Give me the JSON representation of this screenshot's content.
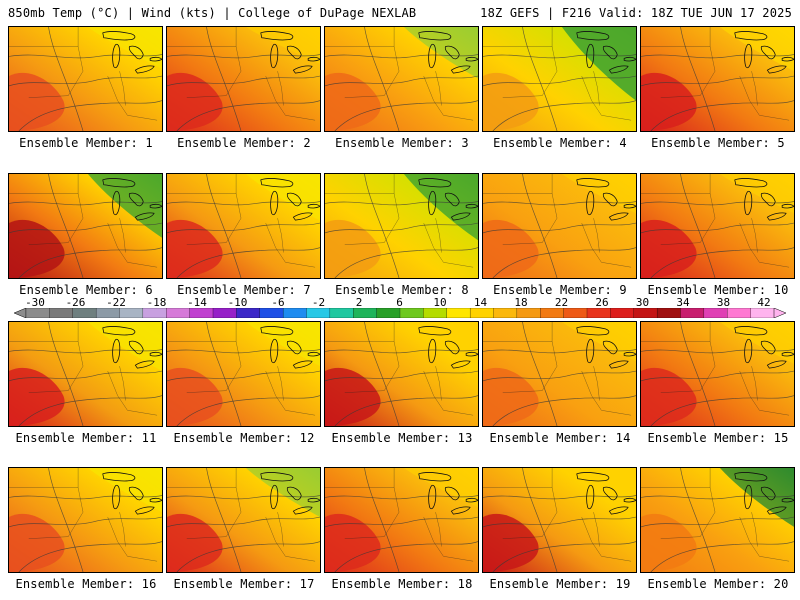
{
  "header": {
    "left": "850mb Temp (°C) | Wind (kts) | College of DuPage NEXLAB",
    "right": "18Z GEFS | F216 Valid: 18Z TUE JUN 17 2025"
  },
  "members": [
    {
      "label": "Ensemble Member: 1",
      "hot": "#e8501e",
      "base": "#f59a12",
      "cool": "#ffd200",
      "cold": "#f7e600",
      "coolness": 0.25
    },
    {
      "label": "Ensemble Member: 2",
      "hot": "#dd2a1c",
      "base": "#f27a12",
      "cool": "#fab80c",
      "cold": "#ffd200",
      "coolness": 0.15
    },
    {
      "label": "Ensemble Member: 3",
      "hot": "#ee6a18",
      "base": "#f9a010",
      "cool": "#ffd200",
      "cold": "#9acd32",
      "coolness": 0.45
    },
    {
      "label": "Ensemble Member: 4",
      "hot": "#f39c12",
      "base": "#ffd200",
      "cool": "#d6e000",
      "cold": "#4ca82c",
      "coolness": 0.9
    },
    {
      "label": "Ensemble Member: 5",
      "hot": "#d8201c",
      "base": "#f27a12",
      "cool": "#fab80c",
      "cold": "#ffd800",
      "coolness": 0.3
    },
    {
      "label": "Ensemble Member: 6",
      "hot": "#b41414",
      "base": "#f27a12",
      "cool": "#ffd200",
      "cold": "#4ca82c",
      "coolness": 0.7
    },
    {
      "label": "Ensemble Member: 7",
      "hot": "#dd2a1c",
      "base": "#f59a12",
      "cool": "#ffd200",
      "cold": "#f7e600",
      "coolness": 0.35
    },
    {
      "label": "Ensemble Member: 8",
      "hot": "#f39c12",
      "base": "#ffd200",
      "cool": "#d6e000",
      "cold": "#4ca82c",
      "coolness": 0.75
    },
    {
      "label": "Ensemble Member: 9",
      "hot": "#ee6a18",
      "base": "#f9a010",
      "cool": "#fbb80c",
      "cold": "#ffd200",
      "coolness": 0.2
    },
    {
      "label": "Ensemble Member: 10",
      "hot": "#d8201c",
      "base": "#f27a12",
      "cool": "#fab80c",
      "cold": "#ffd200",
      "coolness": 0.2
    },
    {
      "label": "Ensemble Member: 11",
      "hot": "#d8201c",
      "base": "#f39c12",
      "cool": "#ffd200",
      "cold": "#f7e600",
      "coolness": 0.4
    },
    {
      "label": "Ensemble Member: 12",
      "hot": "#e8501e",
      "base": "#f59a12",
      "cool": "#ffd200",
      "cold": "#f7e600",
      "coolness": 0.3
    },
    {
      "label": "Ensemble Member: 13",
      "hot": "#c81818",
      "base": "#f59a12",
      "cool": "#ffd200",
      "cold": "#ffd200",
      "coolness": 0.3
    },
    {
      "label": "Ensemble Member: 14",
      "hot": "#ee6a18",
      "base": "#f9a010",
      "cool": "#fab80c",
      "cold": "#ffd200",
      "coolness": 0.2
    },
    {
      "label": "Ensemble Member: 15",
      "hot": "#dd2a1c",
      "base": "#f27a12",
      "cool": "#fab80c",
      "cold": "#ffd200",
      "coolness": 0.25
    },
    {
      "label": "Ensemble Member: 16",
      "hot": "#e8501e",
      "base": "#f59a12",
      "cool": "#ffd200",
      "cold": "#f7e600",
      "coolness": 0.3
    },
    {
      "label": "Ensemble Member: 17",
      "hot": "#dd2a1c",
      "base": "#f59a12",
      "cool": "#ffd200",
      "cold": "#9acd32",
      "coolness": 0.4
    },
    {
      "label": "Ensemble Member: 18",
      "hot": "#dd2a1c",
      "base": "#f27a12",
      "cool": "#fab80c",
      "cold": "#ffd200",
      "coolness": 0.2
    },
    {
      "label": "Ensemble Member: 19",
      "hot": "#c81818",
      "base": "#f59a12",
      "cool": "#ffd200",
      "cold": "#ffd200",
      "coolness": 0.35
    },
    {
      "label": "Ensemble Member: 20",
      "hot": "#f27a12",
      "base": "#f9a010",
      "cool": "#ffd200",
      "cold": "#2e8b2e",
      "coolness": 0.6
    }
  ],
  "colorbar": {
    "labels": [
      "-30",
      "-26",
      "-22",
      "-18",
      "-14",
      "-10",
      "-6",
      "-2",
      "2",
      "6",
      "10",
      "14",
      "18",
      "22",
      "26",
      "30",
      "34",
      "38",
      "42"
    ],
    "colors": [
      "#8c8c8c",
      "#7a7a7a",
      "#6e7f7f",
      "#8c9aa6",
      "#a8b4c4",
      "#c8a0e0",
      "#d67ad8",
      "#c040d0",
      "#9620c8",
      "#3c28c8",
      "#1e50e6",
      "#1e8cf0",
      "#28c8e6",
      "#20c8a0",
      "#1eb45a",
      "#28a028",
      "#6ec81e",
      "#b4dc00",
      "#ffe600",
      "#ffd200",
      "#fbb80c",
      "#f59a12",
      "#f27a12",
      "#ee5a16",
      "#e8341c",
      "#dd1e1c",
      "#c41414",
      "#a01010",
      "#c81e6e",
      "#e040b4",
      "#ff78d2",
      "#ffb4ee"
    ]
  }
}
